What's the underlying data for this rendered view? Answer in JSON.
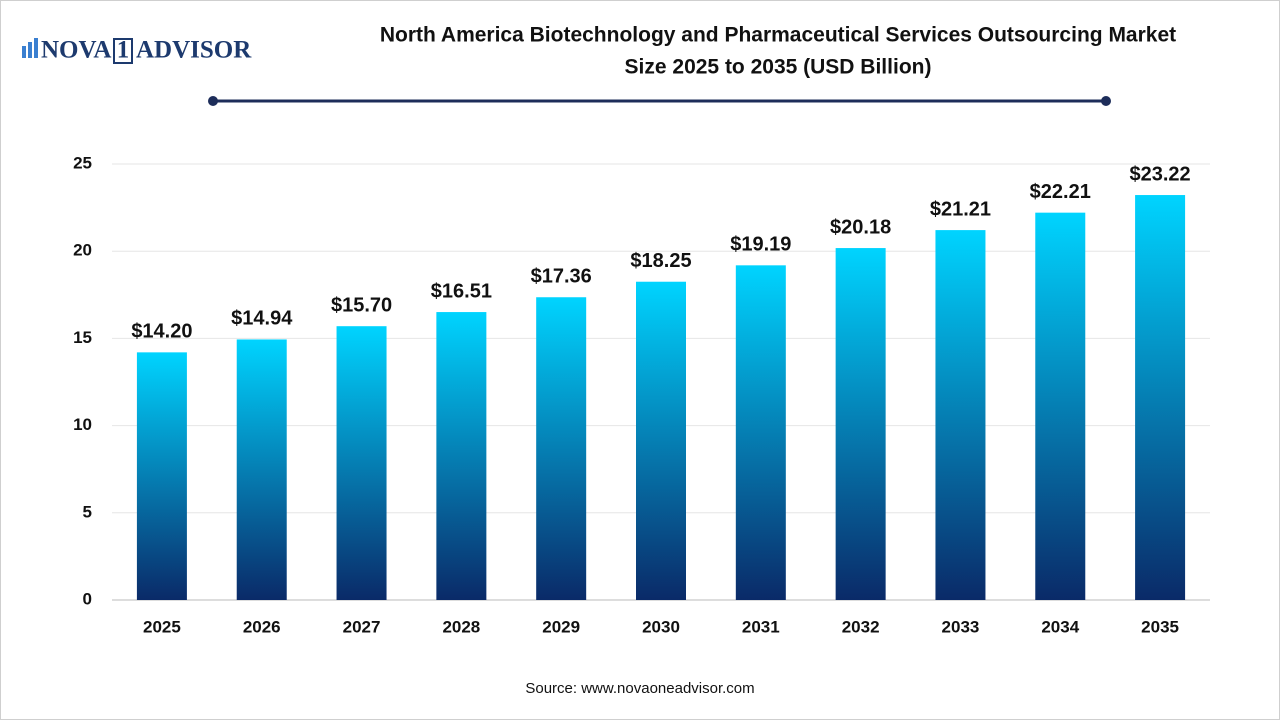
{
  "logo": {
    "left": "NOVA",
    "mark": "1",
    "right": "ADVISOR"
  },
  "source": "Source: www.novaoneadvisor.com",
  "chart_data": {
    "type": "bar",
    "title": [
      "North America Biotechnology and Pharmaceutical Services Outsourcing Market",
      "Size 2025 to 2035  (USD Billion)"
    ],
    "categories": [
      "2025",
      "2026",
      "2027",
      "2028",
      "2029",
      "2030",
      "2031",
      "2032",
      "2033",
      "2034",
      "2035"
    ],
    "values": [
      14.2,
      14.94,
      15.7,
      16.51,
      17.36,
      18.25,
      19.19,
      20.18,
      21.21,
      22.21,
      23.22
    ],
    "value_labels": [
      "$14.20",
      "$14.94",
      "$15.70",
      "$16.51",
      "$17.36",
      "$18.25",
      "$19.19",
      "$20.18",
      "$21.21",
      "$22.21",
      "$23.22"
    ],
    "color": [
      "#00d4ff",
      "#0a2a68"
    ],
    "ylim": [
      0,
      25
    ],
    "yticks": [
      0,
      5,
      10,
      15,
      20,
      25
    ],
    "grid": true
  }
}
